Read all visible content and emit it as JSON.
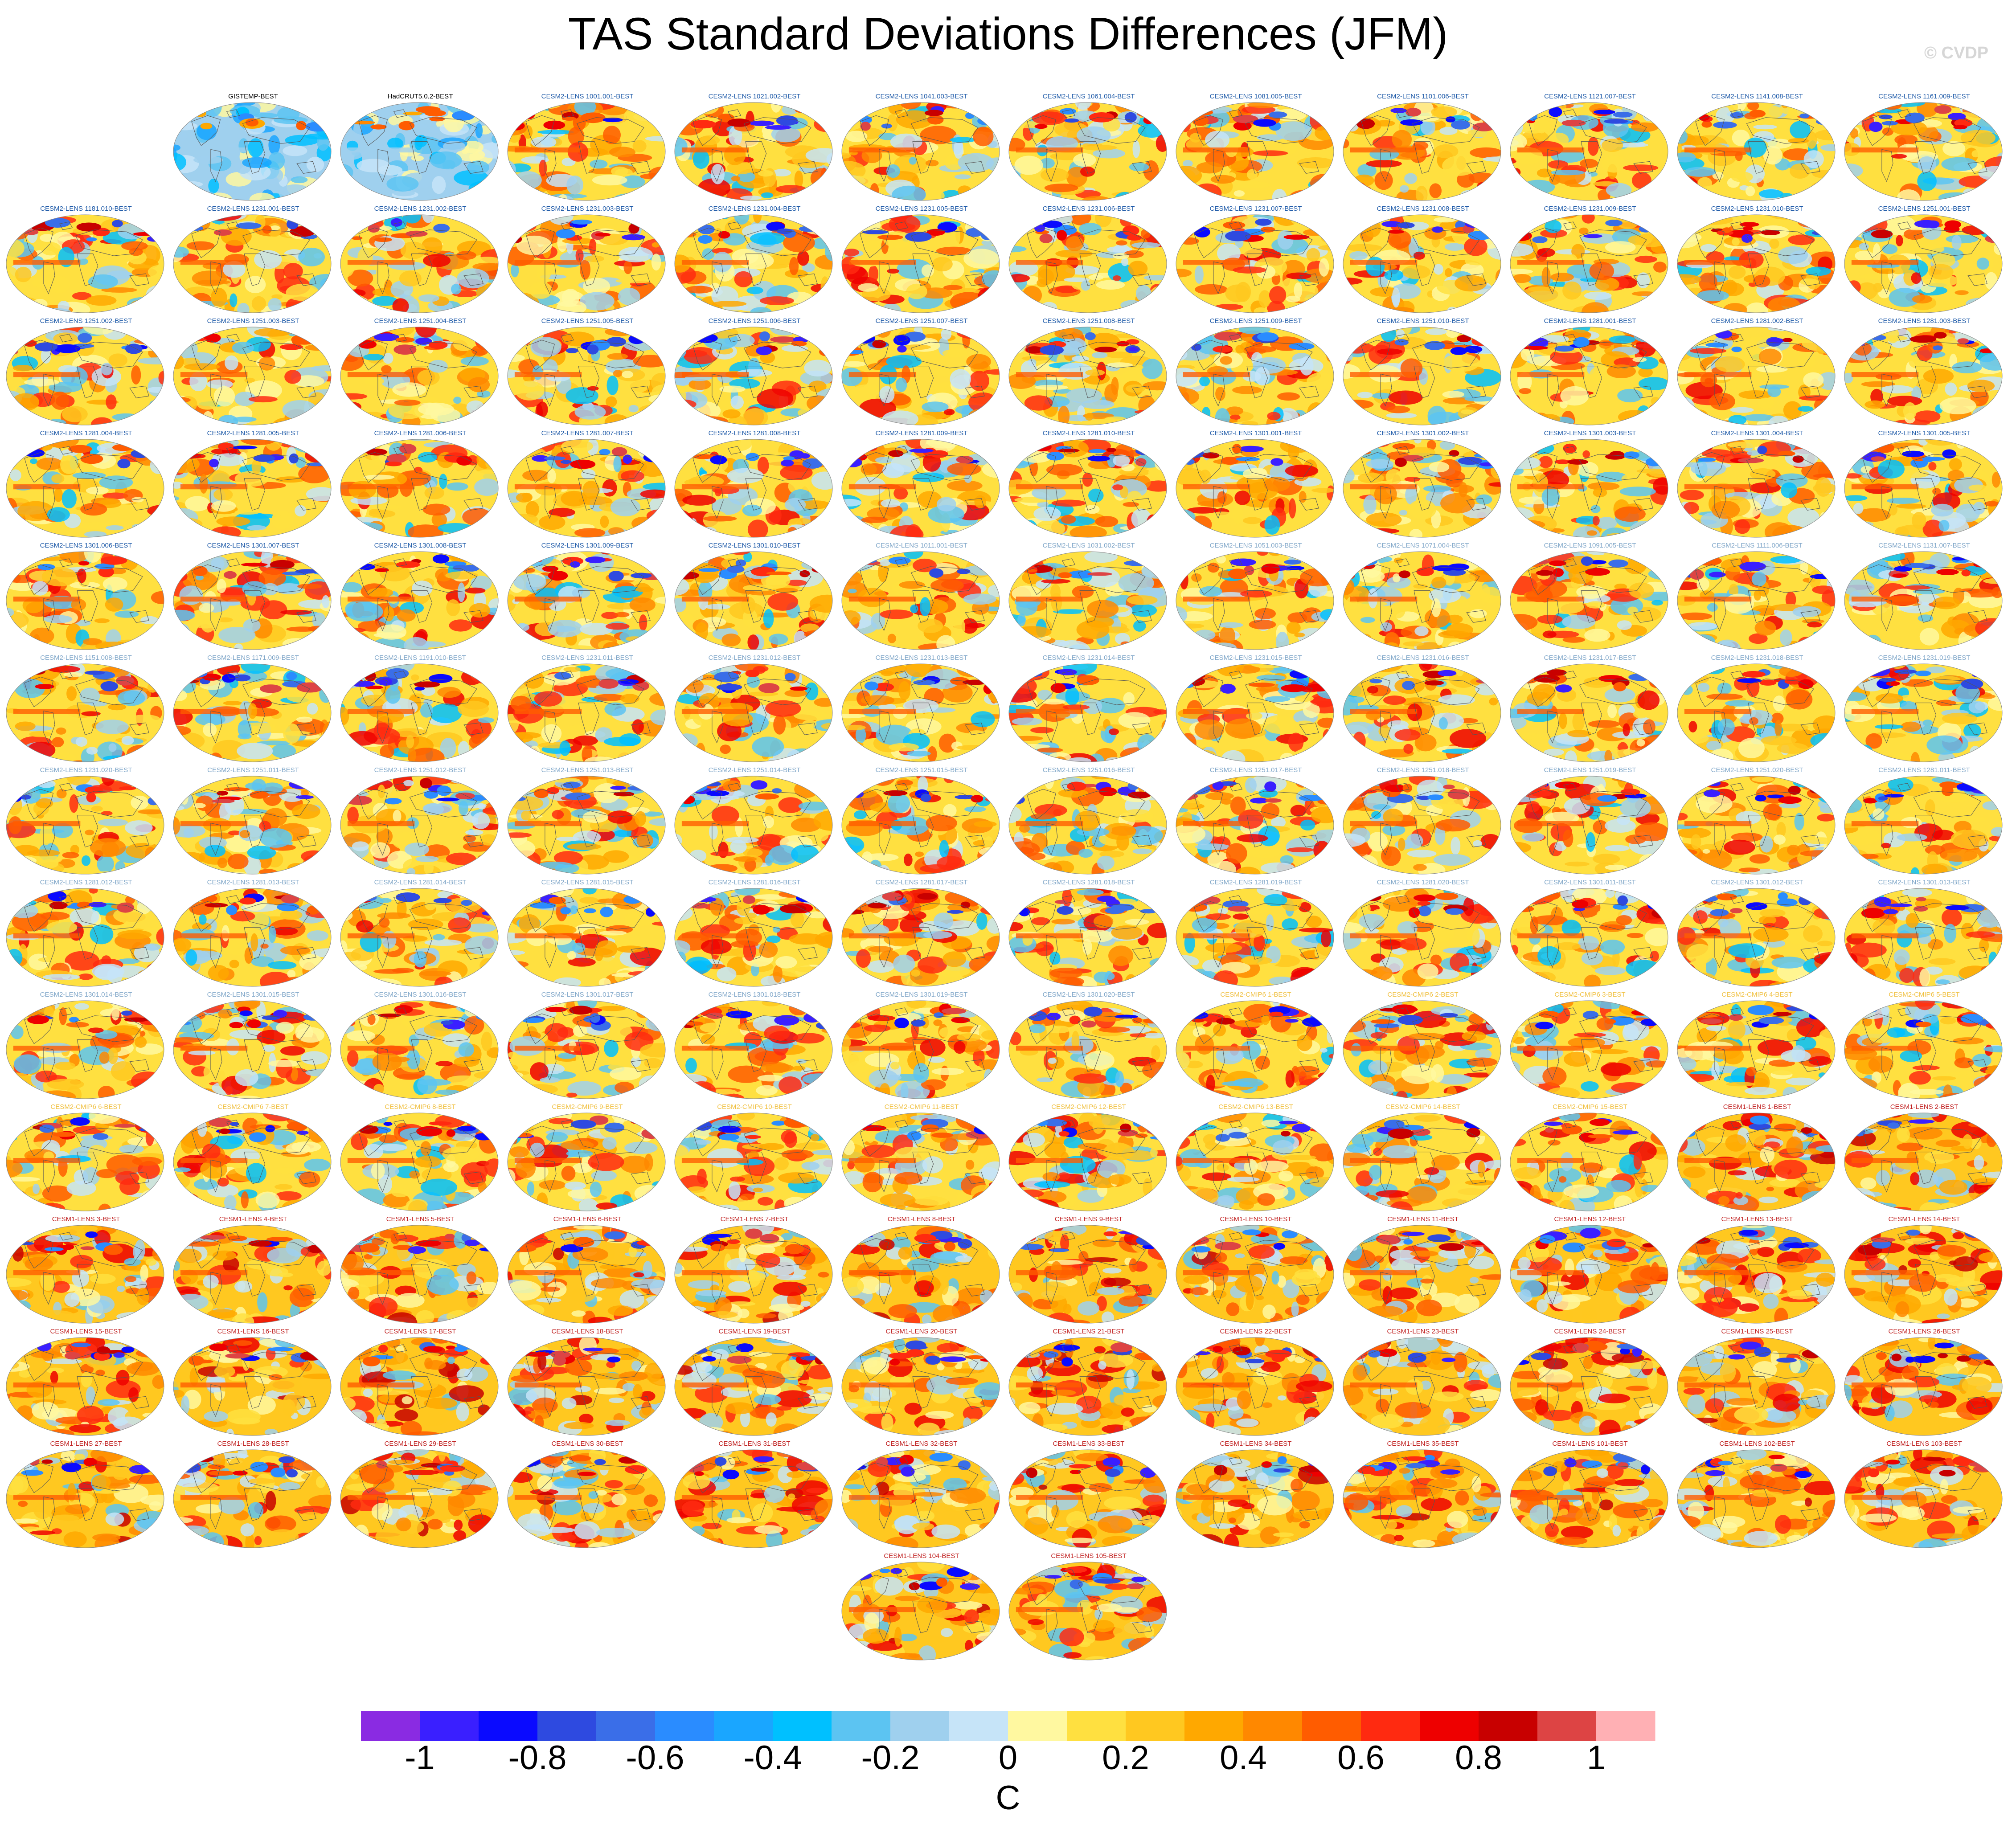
{
  "title": "TAS Standard Deviations Differences (JFM)",
  "credit": "© CVDP",
  "chart_data": {
    "type": "heatmap",
    "description_type": "small-multiple global maps",
    "title": "TAS Standard Deviations Differences (JFM)",
    "colorbar": {
      "unit": "C",
      "tick_labels": [
        "-1",
        "-0.8",
        "-0.6",
        "-0.4",
        "-0.2",
        "0",
        "0.2",
        "0.4",
        "0.6",
        "0.8",
        "1"
      ],
      "tick_values": [
        -1,
        -0.8,
        -0.6,
        -0.4,
        -0.2,
        0,
        0.2,
        0.4,
        0.6,
        0.8,
        1
      ],
      "range": [
        -1.1,
        1.1
      ],
      "colors": [
        "#8a2be2",
        "#3a1fff",
        "#0a0aff",
        "#2e4ae0",
        "#3a6ee8",
        "#2a8cff",
        "#1aa6ff",
        "#00c0ff",
        "#5cc4f2",
        "#9fd0ee",
        "#c6e4f8",
        "#fff8a0",
        "#ffe040",
        "#ffc820",
        "#ffa800",
        "#ff8800",
        "#ff5c00",
        "#ff2a10",
        "#ee0000",
        "#c80000",
        "#dd4444",
        "#ffb0b4"
      ]
    },
    "panels": [
      {
        "label": "GISTEMP-BEST",
        "group": "obs"
      },
      {
        "label": "HadCRUT5.0.2-BEST",
        "group": "obs"
      },
      {
        "label": "CESM2-LENS 1001.001-BEST",
        "group": "cesm2"
      },
      {
        "label": "CESM2-LENS 1021.002-BEST",
        "group": "cesm2"
      },
      {
        "label": "CESM2-LENS 1041.003-BEST",
        "group": "cesm2"
      },
      {
        "label": "CESM2-LENS 1061.004-BEST",
        "group": "cesm2"
      },
      {
        "label": "CESM2-LENS 1081.005-BEST",
        "group": "cesm2"
      },
      {
        "label": "CESM2-LENS 1101.006-BEST",
        "group": "cesm2"
      },
      {
        "label": "CESM2-LENS 1121.007-BEST",
        "group": "cesm2"
      },
      {
        "label": "CESM2-LENS 1141.008-BEST",
        "group": "cesm2"
      },
      {
        "label": "CESM2-LENS 1161.009-BEST",
        "group": "cesm2"
      },
      {
        "label": "CESM2-LENS 1181.010-BEST",
        "group": "cesm2"
      },
      {
        "label": "CESM2-LENS 1231.001-BEST",
        "group": "cesm2"
      },
      {
        "label": "CESM2-LENS 1231.002-BEST",
        "group": "cesm2"
      },
      {
        "label": "CESM2-LENS 1231.003-BEST",
        "group": "cesm2"
      },
      {
        "label": "CESM2-LENS 1231.004-BEST",
        "group": "cesm2"
      },
      {
        "label": "CESM2-LENS 1231.005-BEST",
        "group": "cesm2"
      },
      {
        "label": "CESM2-LENS 1231.006-BEST",
        "group": "cesm2"
      },
      {
        "label": "CESM2-LENS 1231.007-BEST",
        "group": "cesm2"
      },
      {
        "label": "CESM2-LENS 1231.008-BEST",
        "group": "cesm2"
      },
      {
        "label": "CESM2-LENS 1231.009-BEST",
        "group": "cesm2"
      },
      {
        "label": "CESM2-LENS 1231.010-BEST",
        "group": "cesm2"
      },
      {
        "label": "CESM2-LENS 1251.001-BEST",
        "group": "cesm2"
      },
      {
        "label": "CESM2-LENS 1251.002-BEST",
        "group": "cesm2"
      },
      {
        "label": "CESM2-LENS 1251.003-BEST",
        "group": "cesm2"
      },
      {
        "label": "CESM2-LENS 1251.004-BEST",
        "group": "cesm2"
      },
      {
        "label": "CESM2-LENS 1251.005-BEST",
        "group": "cesm2"
      },
      {
        "label": "CESM2-LENS 1251.006-BEST",
        "group": "cesm2"
      },
      {
        "label": "CESM2-LENS 1251.007-BEST",
        "group": "cesm2"
      },
      {
        "label": "CESM2-LENS 1251.008-BEST",
        "group": "cesm2"
      },
      {
        "label": "CESM2-LENS 1251.009-BEST",
        "group": "cesm2"
      },
      {
        "label": "CESM2-LENS 1251.010-BEST",
        "group": "cesm2"
      },
      {
        "label": "CESM2-LENS 1281.001-BEST",
        "group": "cesm2"
      },
      {
        "label": "CESM2-LENS 1281.002-BEST",
        "group": "cesm2"
      },
      {
        "label": "CESM2-LENS 1281.003-BEST",
        "group": "cesm2"
      },
      {
        "label": "CESM2-LENS 1281.004-BEST",
        "group": "cesm2"
      },
      {
        "label": "CESM2-LENS 1281.005-BEST",
        "group": "cesm2"
      },
      {
        "label": "CESM2-LENS 1281.006-BEST",
        "group": "cesm2"
      },
      {
        "label": "CESM2-LENS 1281.007-BEST",
        "group": "cesm2"
      },
      {
        "label": "CESM2-LENS 1281.008-BEST",
        "group": "cesm2"
      },
      {
        "label": "CESM2-LENS 1281.009-BEST",
        "group": "cesm2"
      },
      {
        "label": "CESM2-LENS 1281.010-BEST",
        "group": "cesm2"
      },
      {
        "label": "CESM2-LENS 1301.001-BEST",
        "group": "cesm2"
      },
      {
        "label": "CESM2-LENS 1301.002-BEST",
        "group": "cesm2"
      },
      {
        "label": "CESM2-LENS 1301.003-BEST",
        "group": "cesm2"
      },
      {
        "label": "CESM2-LENS 1301.004-BEST",
        "group": "cesm2"
      },
      {
        "label": "CESM2-LENS 1301.005-BEST",
        "group": "cesm2"
      },
      {
        "label": "CESM2-LENS 1301.006-BEST",
        "group": "cesm2"
      },
      {
        "label": "CESM2-LENS 1301.007-BEST",
        "group": "cesm2"
      },
      {
        "label": "CESM2-LENS 1301.008-BEST",
        "group": "cesm2"
      },
      {
        "label": "CESM2-LENS 1301.009-BEST",
        "group": "cesm2"
      },
      {
        "label": "CESM2-LENS 1301.010-BEST",
        "group": "cesm2"
      },
      {
        "label": "CESM2-LENS 1011.001-BEST",
        "group": "cesm2b"
      },
      {
        "label": "CESM2-LENS 1031.002-BEST",
        "group": "cesm2b"
      },
      {
        "label": "CESM2-LENS 1051.003-BEST",
        "group": "cesm2b"
      },
      {
        "label": "CESM2-LENS 1071.004-BEST",
        "group": "cesm2b"
      },
      {
        "label": "CESM2-LENS 1091.005-BEST",
        "group": "cesm2b"
      },
      {
        "label": "CESM2-LENS 1111.006-BEST",
        "group": "cesm2b"
      },
      {
        "label": "CESM2-LENS 1131.007-BEST",
        "group": "cesm2b"
      },
      {
        "label": "CESM2-LENS 1151.008-BEST",
        "group": "cesm2b"
      },
      {
        "label": "CESM2-LENS 1171.009-BEST",
        "group": "cesm2b"
      },
      {
        "label": "CESM2-LENS 1191.010-BEST",
        "group": "cesm2b"
      },
      {
        "label": "CESM2-LENS 1231.011-BEST",
        "group": "cesm2b"
      },
      {
        "label": "CESM2-LENS 1231.012-BEST",
        "group": "cesm2b"
      },
      {
        "label": "CESM2-LENS 1231.013-BEST",
        "group": "cesm2b"
      },
      {
        "label": "CESM2-LENS 1231.014-BEST",
        "group": "cesm2b"
      },
      {
        "label": "CESM2-LENS 1231.015-BEST",
        "group": "cesm2b"
      },
      {
        "label": "CESM2-LENS 1231.016-BEST",
        "group": "cesm2b"
      },
      {
        "label": "CESM2-LENS 1231.017-BEST",
        "group": "cesm2b"
      },
      {
        "label": "CESM2-LENS 1231.018-BEST",
        "group": "cesm2b"
      },
      {
        "label": "CESM2-LENS 1231.019-BEST",
        "group": "cesm2b"
      },
      {
        "label": "CESM2-LENS 1231.020-BEST",
        "group": "cesm2b"
      },
      {
        "label": "CESM2-LENS 1251.011-BEST",
        "group": "cesm2b"
      },
      {
        "label": "CESM2-LENS 1251.012-BEST",
        "group": "cesm2b"
      },
      {
        "label": "CESM2-LENS 1251.013-BEST",
        "group": "cesm2b"
      },
      {
        "label": "CESM2-LENS 1251.014-BEST",
        "group": "cesm2b"
      },
      {
        "label": "CESM2-LENS 1251.015-BEST",
        "group": "cesm2b"
      },
      {
        "label": "CESM2-LENS 1251.016-BEST",
        "group": "cesm2b"
      },
      {
        "label": "CESM2-LENS 1251.017-BEST",
        "group": "cesm2b"
      },
      {
        "label": "CESM2-LENS 1251.018-BEST",
        "group": "cesm2b"
      },
      {
        "label": "CESM2-LENS 1251.019-BEST",
        "group": "cesm2b"
      },
      {
        "label": "CESM2-LENS 1251.020-BEST",
        "group": "cesm2b"
      },
      {
        "label": "CESM2-LENS 1281.011-BEST",
        "group": "cesm2b"
      },
      {
        "label": "CESM2-LENS 1281.012-BEST",
        "group": "cesm2b"
      },
      {
        "label": "CESM2-LENS 1281.013-BEST",
        "group": "cesm2b"
      },
      {
        "label": "CESM2-LENS 1281.014-BEST",
        "group": "cesm2b"
      },
      {
        "label": "CESM2-LENS 1281.015-BEST",
        "group": "cesm2b"
      },
      {
        "label": "CESM2-LENS 1281.016-BEST",
        "group": "cesm2b"
      },
      {
        "label": "CESM2-LENS 1281.017-BEST",
        "group": "cesm2b"
      },
      {
        "label": "CESM2-LENS 1281.018-BEST",
        "group": "cesm2b"
      },
      {
        "label": "CESM2-LENS 1281.019-BEST",
        "group": "cesm2b"
      },
      {
        "label": "CESM2-LENS 1281.020-BEST",
        "group": "cesm2b"
      },
      {
        "label": "CESM2-LENS 1301.011-BEST",
        "group": "cesm2b"
      },
      {
        "label": "CESM2-LENS 1301.012-BEST",
        "group": "cesm2b"
      },
      {
        "label": "CESM2-LENS 1301.013-BEST",
        "group": "cesm2b"
      },
      {
        "label": "CESM2-LENS 1301.014-BEST",
        "group": "cesm2b"
      },
      {
        "label": "CESM2-LENS 1301.015-BEST",
        "group": "cesm2b"
      },
      {
        "label": "CESM2-LENS 1301.016-BEST",
        "group": "cesm2b"
      },
      {
        "label": "CESM2-LENS 1301.017-BEST",
        "group": "cesm2b"
      },
      {
        "label": "CESM2-LENS 1301.018-BEST",
        "group": "cesm2b"
      },
      {
        "label": "CESM2-LENS 1301.019-BEST",
        "group": "cesm2b"
      },
      {
        "label": "CESM2-LENS 1301.020-BEST",
        "group": "cesm2b"
      },
      {
        "label": "CESM2-CMIP6 1-BEST",
        "group": "cmip6"
      },
      {
        "label": "CESM2-CMIP6 2-BEST",
        "group": "cmip6"
      },
      {
        "label": "CESM2-CMIP6 3-BEST",
        "group": "cmip6"
      },
      {
        "label": "CESM2-CMIP6 4-BEST",
        "group": "cmip6"
      },
      {
        "label": "CESM2-CMIP6 5-BEST",
        "group": "cmip6"
      },
      {
        "label": "CESM2-CMIP6 6-BEST",
        "group": "cmip6"
      },
      {
        "label": "CESM2-CMIP6 7-BEST",
        "group": "cmip6"
      },
      {
        "label": "CESM2-CMIP6 8-BEST",
        "group": "cmip6"
      },
      {
        "label": "CESM2-CMIP6 9-BEST",
        "group": "cmip6"
      },
      {
        "label": "CESM2-CMIP6 10-BEST",
        "group": "cmip6"
      },
      {
        "label": "CESM2-CMIP6 11-BEST",
        "group": "cmip6"
      },
      {
        "label": "CESM2-CMIP6 12-BEST",
        "group": "cmip6"
      },
      {
        "label": "CESM2-CMIP6 13-BEST",
        "group": "cmip6"
      },
      {
        "label": "CESM2-CMIP6 14-BEST",
        "group": "cmip6"
      },
      {
        "label": "CESM2-CMIP6 15-BEST",
        "group": "cmip6"
      },
      {
        "label": "CESM1-LENS 1-BEST",
        "group": "cesm1"
      },
      {
        "label": "CESM1-LENS 2-BEST",
        "group": "cesm1"
      },
      {
        "label": "CESM1-LENS 3-BEST",
        "group": "cesm1"
      },
      {
        "label": "CESM1-LENS 4-BEST",
        "group": "cesm1"
      },
      {
        "label": "CESM1-LENS 5-BEST",
        "group": "cesm1"
      },
      {
        "label": "CESM1-LENS 6-BEST",
        "group": "cesm1"
      },
      {
        "label": "CESM1-LENS 7-BEST",
        "group": "cesm1"
      },
      {
        "label": "CESM1-LENS 8-BEST",
        "group": "cesm1"
      },
      {
        "label": "CESM1-LENS 9-BEST",
        "group": "cesm1"
      },
      {
        "label": "CESM1-LENS 10-BEST",
        "group": "cesm1"
      },
      {
        "label": "CESM1-LENS 11-BEST",
        "group": "cesm1"
      },
      {
        "label": "CESM1-LENS 12-BEST",
        "group": "cesm1"
      },
      {
        "label": "CESM1-LENS 13-BEST",
        "group": "cesm1"
      },
      {
        "label": "CESM1-LENS 14-BEST",
        "group": "cesm1"
      },
      {
        "label": "CESM1-LENS 15-BEST",
        "group": "cesm1"
      },
      {
        "label": "CESM1-LENS 16-BEST",
        "group": "cesm1"
      },
      {
        "label": "CESM1-LENS 17-BEST",
        "group": "cesm1"
      },
      {
        "label": "CESM1-LENS 18-BEST",
        "group": "cesm1"
      },
      {
        "label": "CESM1-LENS 19-BEST",
        "group": "cesm1"
      },
      {
        "label": "CESM1-LENS 20-BEST",
        "group": "cesm1"
      },
      {
        "label": "CESM1-LENS 21-BEST",
        "group": "cesm1"
      },
      {
        "label": "CESM1-LENS 22-BEST",
        "group": "cesm1"
      },
      {
        "label": "CESM1-LENS 23-BEST",
        "group": "cesm1"
      },
      {
        "label": "CESM1-LENS 24-BEST",
        "group": "cesm1"
      },
      {
        "label": "CESM1-LENS 25-BEST",
        "group": "cesm1"
      },
      {
        "label": "CESM1-LENS 26-BEST",
        "group": "cesm1"
      },
      {
        "label": "CESM1-LENS 27-BEST",
        "group": "cesm1"
      },
      {
        "label": "CESM1-LENS 28-BEST",
        "group": "cesm1"
      },
      {
        "label": "CESM1-LENS 29-BEST",
        "group": "cesm1"
      },
      {
        "label": "CESM1-LENS 30-BEST",
        "group": "cesm1"
      },
      {
        "label": "CESM1-LENS 31-BEST",
        "group": "cesm1"
      },
      {
        "label": "CESM1-LENS 32-BEST",
        "group": "cesm1"
      },
      {
        "label": "CESM1-LENS 33-BEST",
        "group": "cesm1"
      },
      {
        "label": "CESM1-LENS 34-BEST",
        "group": "cesm1"
      },
      {
        "label": "CESM1-LENS 35-BEST",
        "group": "cesm1"
      },
      {
        "label": "CESM1-LENS 101-BEST",
        "group": "cesm1"
      },
      {
        "label": "CESM1-LENS 102-BEST",
        "group": "cesm1"
      },
      {
        "label": "CESM1-LENS 103-BEST",
        "group": "cesm1"
      },
      {
        "label": "CESM1-LENS 104-BEST",
        "group": "cesm1"
      },
      {
        "label": "CESM1-LENS 105-BEST",
        "group": "cesm1"
      }
    ]
  },
  "label_colors": {
    "obs": "#000000",
    "cesm2": "#1e5aa8",
    "cesm2b": "#7fa6c8",
    "cmip6": "#f0c040",
    "cesm1": "#c02020"
  }
}
